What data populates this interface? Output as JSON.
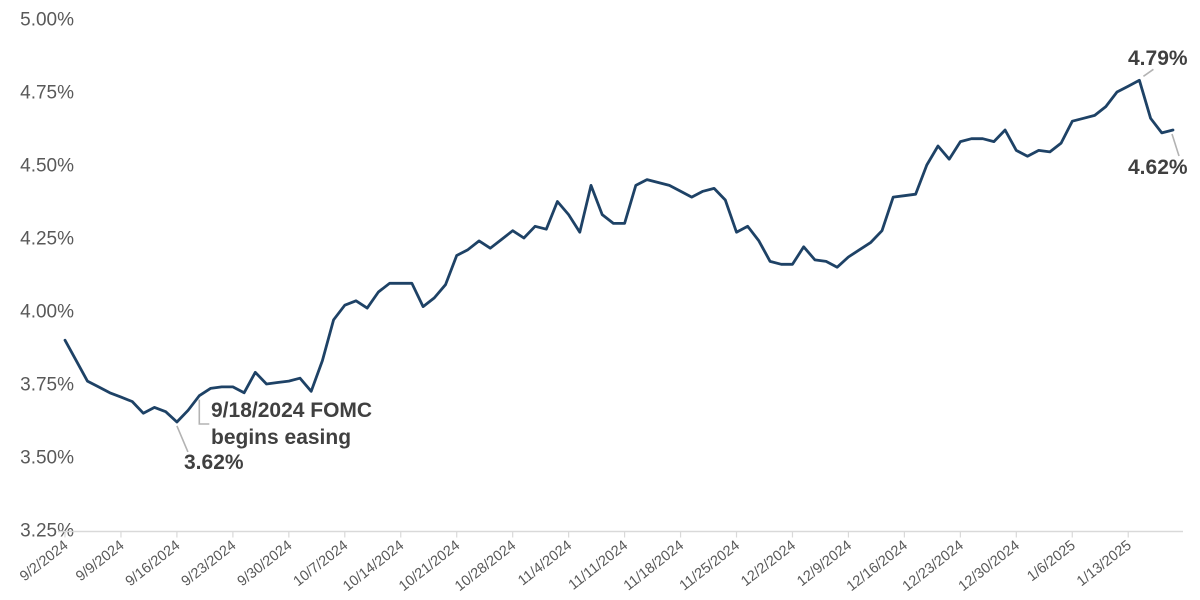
{
  "chart_data": {
    "type": "line",
    "title": "",
    "legend": "none",
    "grid": false,
    "line_color": "#1e4266",
    "ylim": [
      3.25,
      5.0
    ],
    "y_tick_values": [
      5.0,
      4.75,
      4.5,
      4.25,
      4.0,
      3.75,
      3.5,
      3.25
    ],
    "y_tick_labels": [
      "5.00%",
      "4.75%",
      "4.50%",
      "4.25%",
      "4.00%",
      "3.75%",
      "3.50%",
      "3.25%"
    ],
    "x_tick_labels": [
      "9/2/2024",
      "9/9/2024",
      "9/16/2024",
      "9/23/2024",
      "9/30/2024",
      "10/7/2024",
      "10/14/2024",
      "10/21/2024",
      "10/28/2024",
      "11/4/2024",
      "11/11/2024",
      "11/18/2024",
      "11/25/2024",
      "12/2/2024",
      "12/9/2024",
      "12/16/2024",
      "12/23/2024",
      "12/30/2024",
      "1/6/2025",
      "1/13/2025"
    ],
    "x_tick_indices": [
      0,
      5,
      10,
      15,
      20,
      25,
      30,
      35,
      40,
      45,
      50,
      55,
      60,
      65,
      70,
      75,
      80,
      85,
      90,
      95
    ],
    "x_dates": [
      "9/2/2024",
      "9/3/2024",
      "9/4/2024",
      "9/5/2024",
      "9/6/2024",
      "9/9/2024",
      "9/10/2024",
      "9/11/2024",
      "9/12/2024",
      "9/13/2024",
      "9/16/2024",
      "9/17/2024",
      "9/18/2024",
      "9/19/2024",
      "9/20/2024",
      "9/23/2024",
      "9/24/2024",
      "9/25/2024",
      "9/26/2024",
      "9/27/2024",
      "9/30/2024",
      "10/1/2024",
      "10/2/2024",
      "10/3/2024",
      "10/4/2024",
      "10/7/2024",
      "10/8/2024",
      "10/9/2024",
      "10/10/2024",
      "10/11/2024",
      "10/14/2024",
      "10/15/2024",
      "10/16/2024",
      "10/17/2024",
      "10/18/2024",
      "10/21/2024",
      "10/22/2024",
      "10/23/2024",
      "10/24/2024",
      "10/25/2024",
      "10/28/2024",
      "10/29/2024",
      "10/30/2024",
      "10/31/2024",
      "11/1/2024",
      "11/4/2024",
      "11/5/2024",
      "11/6/2024",
      "11/7/2024",
      "11/8/2024",
      "11/11/2024",
      "11/12/2024",
      "11/13/2024",
      "11/14/2024",
      "11/15/2024",
      "11/18/2024",
      "11/19/2024",
      "11/20/2024",
      "11/21/2024",
      "11/22/2024",
      "11/25/2024",
      "11/26/2024",
      "11/27/2024",
      "11/28/2024",
      "11/29/2024",
      "12/2/2024",
      "12/3/2024",
      "12/4/2024",
      "12/5/2024",
      "12/6/2024",
      "12/9/2024",
      "12/10/2024",
      "12/11/2024",
      "12/12/2024",
      "12/13/2024",
      "12/16/2024",
      "12/17/2024",
      "12/18/2024",
      "12/19/2024",
      "12/20/2024",
      "12/23/2024",
      "12/24/2024",
      "12/25/2024",
      "12/26/2024",
      "12/27/2024",
      "12/30/2024",
      "12/31/2024",
      "1/1/2025",
      "1/2/2025",
      "1/3/2025",
      "1/6/2025",
      "1/7/2025",
      "1/8/2025",
      "1/9/2025",
      "1/10/2025",
      "1/13/2025",
      "1/14/2025",
      "1/15/2025",
      "1/16/2025",
      "1/17/2025"
    ],
    "values": [
      3.9,
      3.83,
      3.76,
      3.74,
      3.72,
      3.705,
      3.69,
      3.65,
      3.67,
      3.655,
      3.62,
      3.66,
      3.71,
      3.735,
      3.74,
      3.74,
      3.72,
      3.79,
      3.75,
      3.755,
      3.76,
      3.77,
      3.725,
      3.83,
      3.97,
      4.02,
      4.035,
      4.01,
      4.065,
      4.095,
      4.095,
      4.095,
      4.015,
      4.045,
      4.09,
      4.19,
      4.21,
      4.24,
      4.215,
      4.245,
      4.275,
      4.25,
      4.29,
      4.28,
      4.375,
      4.33,
      4.27,
      4.43,
      4.33,
      4.3,
      4.3,
      4.43,
      4.45,
      4.44,
      4.43,
      4.41,
      4.39,
      4.41,
      4.42,
      4.38,
      4.27,
      4.29,
      4.24,
      4.17,
      4.16,
      4.16,
      4.22,
      4.175,
      4.17,
      4.15,
      4.185,
      4.21,
      4.235,
      4.275,
      4.39,
      4.395,
      4.4,
      4.5,
      4.565,
      4.52,
      4.58,
      4.59,
      4.59,
      4.58,
      4.62,
      4.55,
      4.53,
      4.55,
      4.545,
      4.575,
      4.65,
      4.66,
      4.67,
      4.7,
      4.75,
      4.77,
      4.79,
      4.66,
      4.61,
      4.62
    ]
  },
  "annotations": {
    "fomc": {
      "line1": "9/18/2024 FOMC",
      "line2": "begins easing",
      "anchor_date": "9/18/2024",
      "anchor_index": 12
    },
    "low": {
      "label": "3.62%",
      "anchor_date": "9/16/2024",
      "anchor_index": 10
    },
    "peak": {
      "label": "4.79%",
      "anchor_date": "1/14/2025",
      "anchor_index": 96
    },
    "last": {
      "label": "4.62%",
      "anchor_date": "1/17/2025",
      "anchor_index": 99
    }
  },
  "colors": {
    "line": "#1e4266",
    "axis": "#d9d9d9",
    "tick_label": "#595959",
    "annotation_text": "#404040",
    "leader": "#b3b3b3",
    "background": "#ffffff"
  }
}
